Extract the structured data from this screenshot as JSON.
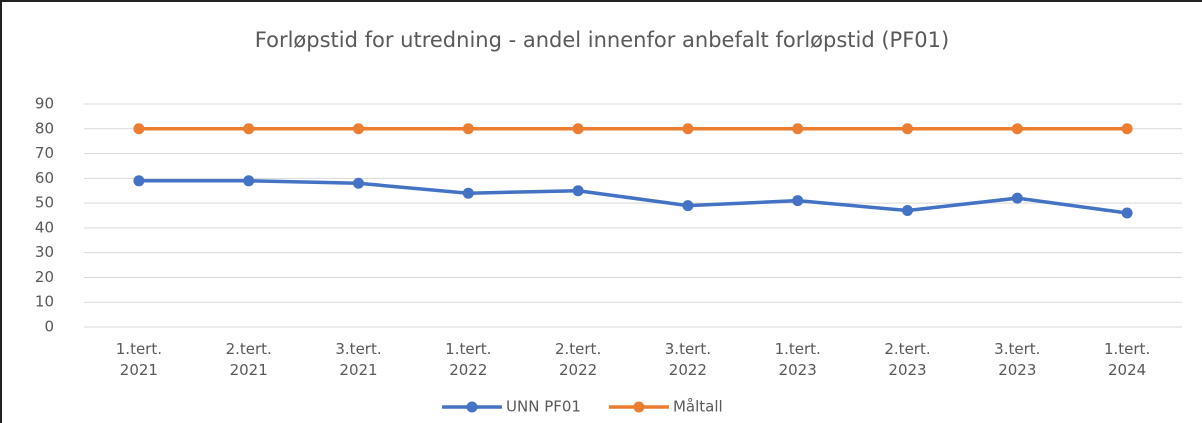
{
  "chart_data": {
    "type": "line",
    "title": "Forløpstid for utredning - andel innenfor anbefalt forløpstid (PF01)",
    "categories": [
      "1.tert. 2021",
      "2.tert. 2021",
      "3.tert. 2021",
      "1.tert. 2022",
      "2.tert. 2022",
      "3.tert. 2022",
      "1.tert. 2023",
      "2.tert. 2023",
      "3.tert. 2023",
      "1.tert. 2024"
    ],
    "series": [
      {
        "name": "UNN PF01",
        "color": "#4472c4",
        "values": [
          59,
          59,
          58,
          54,
          55,
          49,
          51,
          47,
          52,
          46
        ]
      },
      {
        "name": "Måltall",
        "color": "#ed7d31",
        "values": [
          80,
          80,
          80,
          80,
          80,
          80,
          80,
          80,
          80,
          80
        ]
      }
    ],
    "ylim": [
      0,
      90
    ],
    "yticks": [
      0,
      10,
      20,
      30,
      40,
      50,
      60,
      70,
      80,
      90
    ],
    "grid": true,
    "legend": "bottom"
  }
}
